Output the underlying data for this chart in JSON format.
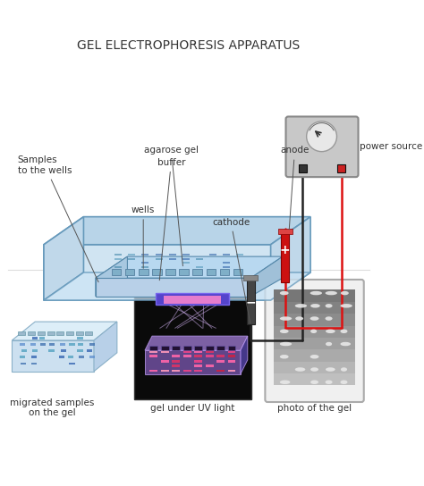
{
  "title": "GEL ELECTROPHORESIS APPARATUS",
  "title_fontsize": 10,
  "title_color": "#333333",
  "background_color": "#ffffff",
  "labels": {
    "agarose_gel": "agarose gel",
    "buffer": "buffer",
    "anode": "anode",
    "cathode": "cathode",
    "wells": "wells",
    "samples": "Samples\nto the wells",
    "power_source": "power source",
    "migrated": "migrated samples\non the gel",
    "uv_light": "gel under UV light",
    "photo": "photo of the gel"
  },
  "label_fontsize": 7.5,
  "colors": {
    "box_outer": "#b8d4e8",
    "box_inner": "#c8e0f0",
    "gel_fill": "#d0e8f5",
    "well_color": "#8ab0c8",
    "electrode_black": "#333333",
    "electrode_red": "#cc2222",
    "power_box": "#aaaaaa",
    "power_box_face": "#cccccc",
    "wire_red": "#dd1111",
    "wire_black": "#222222",
    "bottom_left_bg": "#e8f4fc",
    "bottom_left_band": "#5599bb",
    "bottom_mid_bg": "#111111",
    "bottom_mid_band_pink": "#dd6688",
    "bottom_mid_band_red": "#cc2244",
    "bottom_mid_uv": "#8866cc",
    "bottom_right_bg": "#bbbbbb",
    "bottom_right_band": "#eeeeee"
  }
}
